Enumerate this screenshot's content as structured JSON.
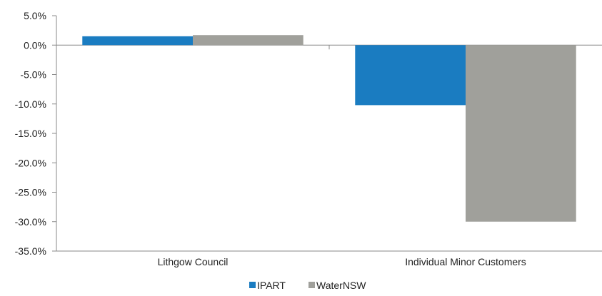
{
  "chart_data": {
    "type": "bar",
    "categories": [
      "Lithgow Council",
      "Individual Minor Customers"
    ],
    "series": [
      {
        "name": "IPART",
        "values": [
          1.5,
          -10.2
        ]
      },
      {
        "name": "WaterNSW",
        "values": [
          1.7,
          -30.0
        ]
      }
    ],
    "ylim": [
      -35,
      5
    ],
    "yticks": [
      5,
      0,
      -5,
      -10,
      -15,
      -20,
      -25,
      -30,
      -35
    ],
    "ytick_labels": [
      "5.0%",
      "0.0%",
      "-5.0%",
      "-10.0%",
      "-15.0%",
      "-20.0%",
      "-25.0%",
      "-30.0%",
      "-35.0%"
    ],
    "grid": false,
    "legend_position": "bottom",
    "colors": {
      "IPART": "#1a7cc1",
      "WaterNSW": "#a0a09b"
    }
  }
}
